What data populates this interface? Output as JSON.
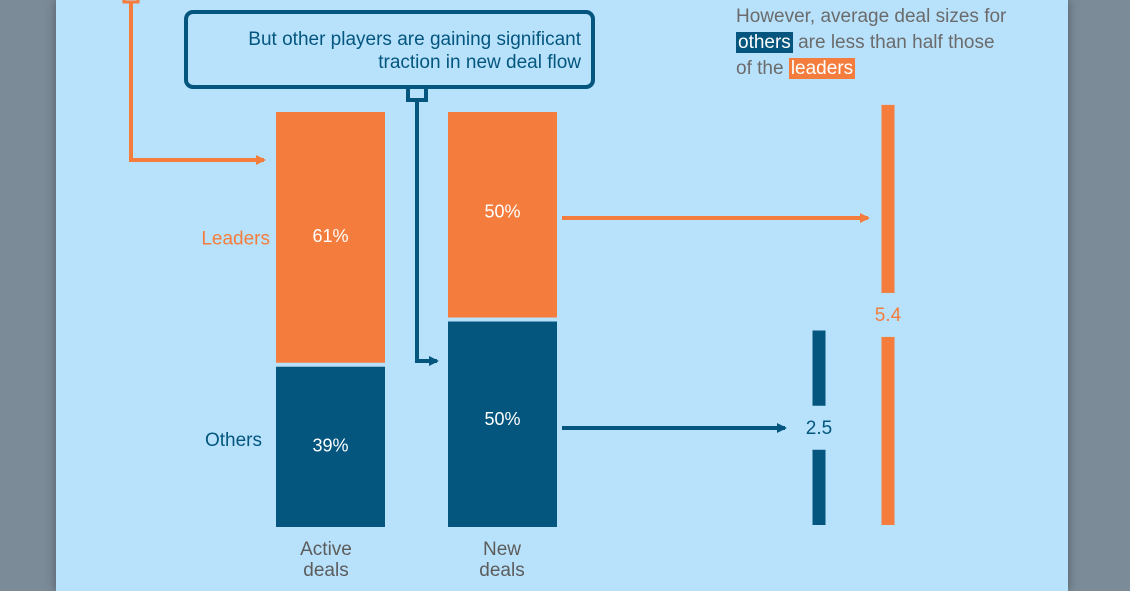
{
  "colors": {
    "leaders": "#f47c3c",
    "others": "#04567f",
    "text": "#5c5c5c"
  },
  "callout": {
    "line1": "But other players are gaining significant",
    "line2": "traction in new deal flow"
  },
  "note": {
    "line1": "However, average deal sizes for",
    "line2_highlight": "others",
    "line2_rest": " are less than half those",
    "line3_prefix": "of the ",
    "line3_highlight": "leaders"
  },
  "chart_data": [
    {
      "type": "bar",
      "stacked": true,
      "categories": [
        [
          "Active",
          "deals"
        ],
        [
          "New",
          "deals"
        ]
      ],
      "series": [
        {
          "name": "Others",
          "values": [
            39,
            50
          ],
          "labels": [
            "39%",
            "50%"
          ]
        },
        {
          "name": "Leaders",
          "values": [
            61,
            50
          ],
          "labels": [
            "61%",
            "50%"
          ]
        }
      ],
      "ylim": [
        0,
        100
      ]
    },
    {
      "type": "bar",
      "categories": [
        "Others",
        "Leaders"
      ],
      "values": [
        2.5,
        5.4
      ],
      "labels": [
        "2.5",
        "5.4"
      ]
    }
  ]
}
